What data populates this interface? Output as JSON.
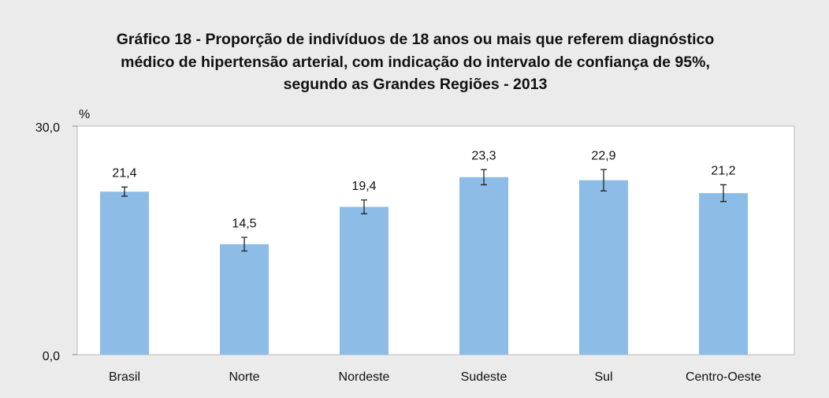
{
  "chart_data": {
    "type": "bar",
    "title": [
      "Gráfico 18 - Proporção de indivíduos de 18 anos ou mais que referem diagnóstico",
      "médico de hipertensão arterial, com indicação do intervalo de confiança de 95%,",
      "segundo as Grandes Regiões - 2013"
    ],
    "ylabel": "%",
    "categories": [
      "Brasil",
      "Norte",
      "Nordeste",
      "Sudeste",
      "Sul",
      "Centro-Oeste"
    ],
    "values": [
      21.4,
      14.5,
      19.4,
      23.3,
      22.9,
      21.2
    ],
    "value_labels": [
      "21,4",
      "14,5",
      "19,4",
      "23,3",
      "22,9",
      "21,2"
    ],
    "errors": [
      0.6,
      0.9,
      0.9,
      1.0,
      1.4,
      1.1
    ],
    "color": "#8dbde6",
    "ylim": [
      0,
      30
    ],
    "yticks": [
      {
        "value": 0,
        "label": "0,0"
      },
      {
        "value": 30,
        "label": "30,0"
      }
    ],
    "grid": false
  }
}
